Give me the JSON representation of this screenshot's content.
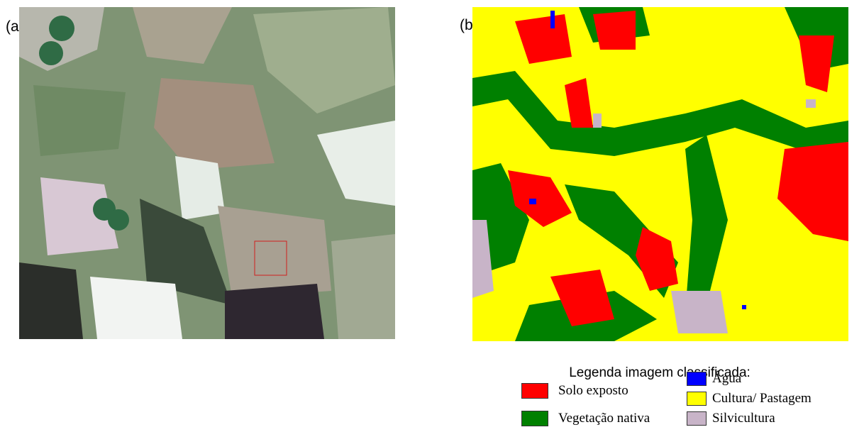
{
  "panels": [
    {
      "label": "(a)"
    },
    {
      "label": "(b)"
    }
  ],
  "legend": {
    "title": "Legenda imagem classificada:",
    "items": [
      {
        "label": "Solo exposto",
        "color": "#ff0000"
      },
      {
        "label": "Vegetação nativa",
        "color": "#008000"
      },
      {
        "label": "Água",
        "color": "#0000ff"
      },
      {
        "label": "Cultura/ Pastagem",
        "color": "#ffff00"
      },
      {
        "label": "Silvicultura",
        "color": "#c8b4c8"
      }
    ]
  }
}
